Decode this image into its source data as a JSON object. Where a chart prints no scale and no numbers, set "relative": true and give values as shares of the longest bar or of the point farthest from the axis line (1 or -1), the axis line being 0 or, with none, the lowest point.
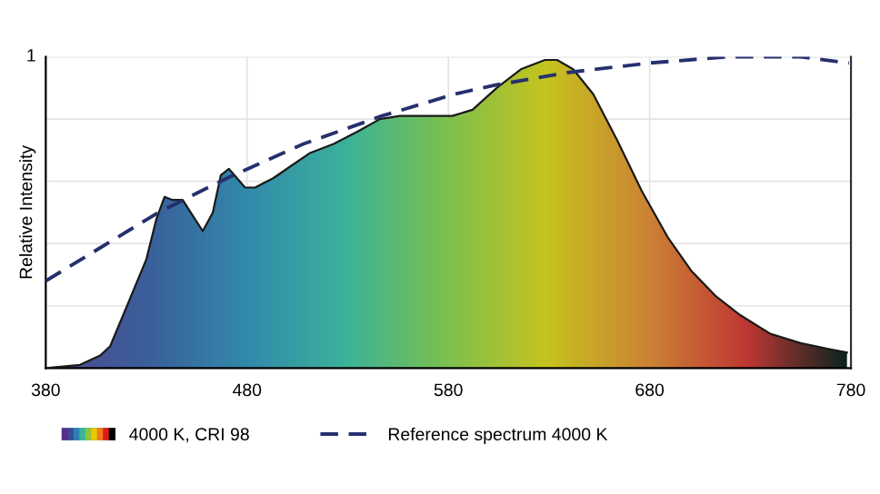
{
  "chart_data": {
    "type": "area",
    "relative": true,
    "ylabel": "Relative Intensity",
    "xlim": [
      380,
      780
    ],
    "xticks": [
      380,
      480,
      580,
      680,
      780
    ],
    "grid": true,
    "legend": "bottom",
    "annotations": [
      "1"
    ],
    "series": [
      {
        "name": "4000 K, CRI 98",
        "color": "#3bb39a",
        "x": [
          380,
          397,
          407,
          412,
          421,
          430,
          435,
          439,
          443,
          448,
          453,
          458,
          463,
          467,
          471,
          475,
          479,
          484,
          487,
          493,
          502,
          511,
          523,
          535,
          546,
          556,
          582,
          592,
          604,
          616,
          628,
          634,
          642,
          652,
          664,
          676,
          689,
          701,
          713,
          725,
          740,
          755,
          770,
          778
        ],
        "values": [
          0.0,
          0.01,
          0.04,
          0.07,
          0.21,
          0.35,
          0.48,
          0.55,
          0.54,
          0.54,
          0.49,
          0.44,
          0.5,
          0.62,
          0.64,
          0.61,
          0.58,
          0.58,
          0.59,
          0.61,
          0.65,
          0.69,
          0.72,
          0.76,
          0.8,
          0.81,
          0.81,
          0.83,
          0.9,
          0.96,
          0.99,
          0.99,
          0.96,
          0.88,
          0.73,
          0.57,
          0.42,
          0.31,
          0.23,
          0.17,
          0.11,
          0.08,
          0.06,
          0.05
        ]
      },
      {
        "name": "Reference spectrum 4000 K",
        "type": "line",
        "color": "#26306e",
        "line_style": "dashed",
        "x": [
          380,
          436,
          470,
          508,
          547,
          583,
          604,
          640,
          680,
          719,
          755,
          779
        ],
        "values": [
          0.28,
          0.5,
          0.61,
          0.72,
          0.81,
          0.88,
          0.91,
          0.95,
          0.98,
          1.0,
          1.0,
          0.98
        ]
      }
    ]
  }
}
